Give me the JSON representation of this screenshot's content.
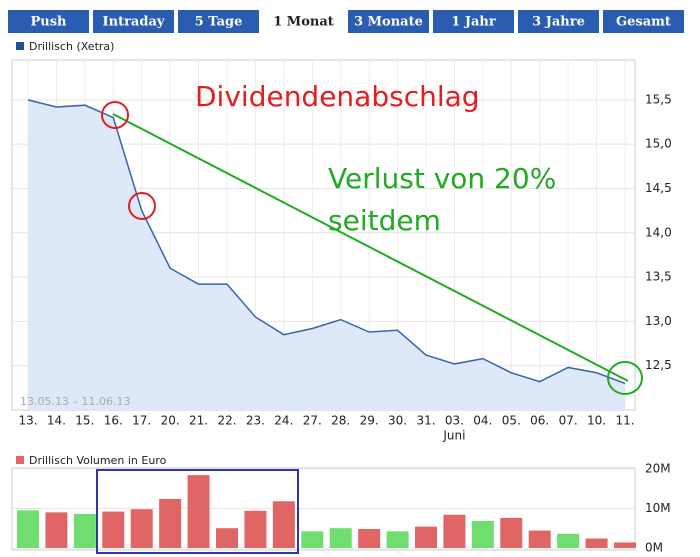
{
  "tabs": [
    "Push",
    "Intraday",
    "5 Tage",
    "1 Monat",
    "3 Monate",
    "1 Jahr",
    "3 Jahre",
    "Gesamt"
  ],
  "active_tab": 3,
  "chart_data": [
    {
      "type": "area",
      "legend": "Drillisch (Xetra)",
      "color": "#3a64a8",
      "fill": "#dde8f8",
      "date_range": "13.05.13 – 11.06.13",
      "categories": [
        "13.",
        "14.",
        "15.",
        "16.",
        "17.",
        "20.",
        "21.",
        "22.",
        "23.",
        "24.",
        "27.",
        "28.",
        "29.",
        "30.",
        "31.",
        "03.",
        "04.",
        "05.",
        "06.",
        "07.",
        "10.",
        "11."
      ],
      "month_label": "Juni",
      "values": [
        15.5,
        15.42,
        15.44,
        15.3,
        14.25,
        13.6,
        13.42,
        13.42,
        13.05,
        12.85,
        12.92,
        13.02,
        12.88,
        12.9,
        12.62,
        12.52,
        12.58,
        12.42,
        12.32,
        12.48,
        12.42,
        12.3
      ],
      "ylim": [
        12.0,
        15.95
      ],
      "yticks": [
        {
          "value": 12.5,
          "label": "12,5"
        },
        {
          "value": 13.0,
          "label": "13,0"
        },
        {
          "value": 13.5,
          "label": "13,5"
        },
        {
          "value": 14.0,
          "label": "14,0"
        },
        {
          "value": 14.5,
          "label": "14,5"
        },
        {
          "value": 15.0,
          "label": "15,0"
        },
        {
          "value": 15.5,
          "label": "15,5"
        }
      ],
      "grid": true,
      "annotations": [
        "Dividendenabschlag",
        "Verlust von 20%",
        "seitdem"
      ]
    },
    {
      "type": "bar",
      "legend": "Drillisch Volumen in Euro",
      "legend_color": "#e06666",
      "values": [
        9500000,
        9000000,
        8600000,
        9200000,
        9800000,
        12400000,
        18400000,
        5000000,
        9400000,
        11800000,
        4200000,
        5000000,
        4800000,
        4200000,
        5400000,
        8400000,
        6800000,
        7600000,
        4400000,
        3600000,
        2400000,
        1400000
      ],
      "colors": [
        "#6fdd6f",
        "#e06666",
        "#6fdd6f",
        "#e06666",
        "#e06666",
        "#e06666",
        "#e06666",
        "#e06666",
        "#e06666",
        "#e06666",
        "#6fdd6f",
        "#6fdd6f",
        "#e06666",
        "#6fdd6f",
        "#e06666",
        "#e06666",
        "#6fdd6f",
        "#e06666",
        "#e06666",
        "#6fdd6f",
        "#e06666",
        "#e06666"
      ],
      "ylim": [
        0,
        20200000
      ],
      "yticks": [
        {
          "value": 0,
          "label": "0M"
        },
        {
          "value": 10000000,
          "label": "10M"
        },
        {
          "value": 20000000,
          "label": "20M"
        }
      ],
      "grid": true
    }
  ]
}
